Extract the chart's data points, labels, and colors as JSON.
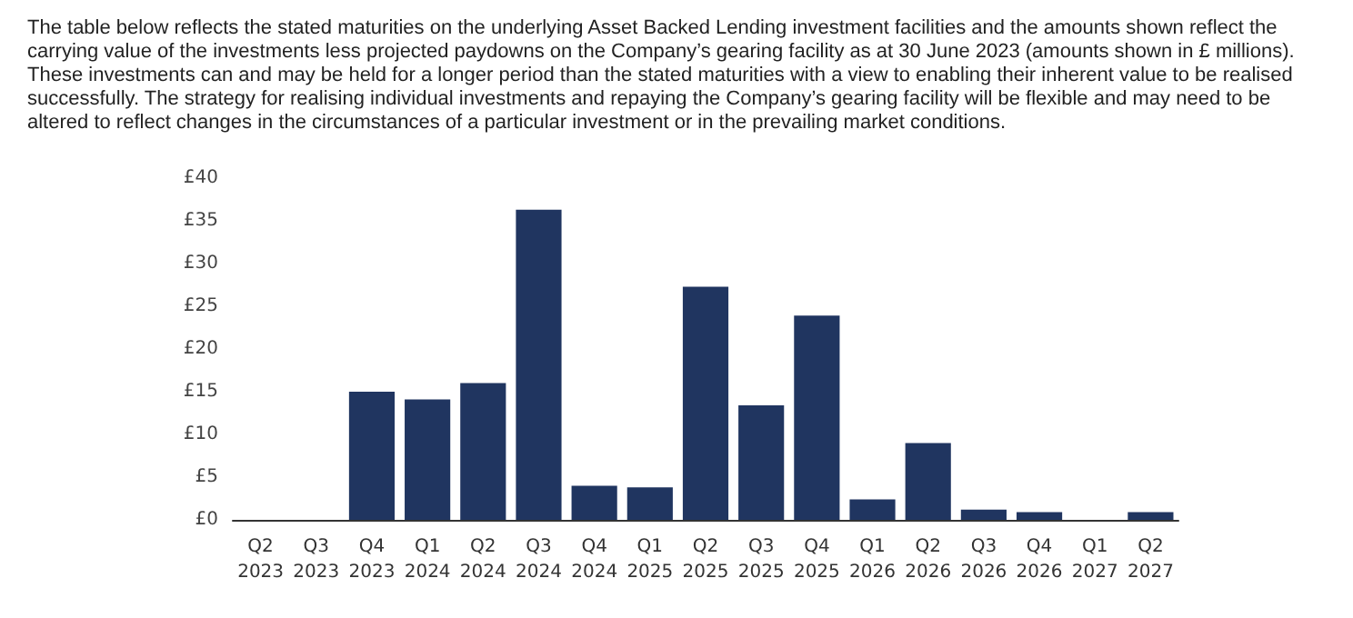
{
  "chart_data": {
    "type": "bar",
    "title": "The table below reflects the stated maturities on the underlying Asset Backed Lending investment facilities and the amounts shown reflect the carrying value of the investments less projected paydowns on the Company’s gearing facility as at 30 June 2023 (amounts shown in £ millions). These investments can and may be held for a longer period than the stated maturities with a view to enabling their inherent value to be realised successfully. The strategy for realising individual investments and repaying the Company’s gearing facility will be flexible and may need to be altered to reflect changes in the circumstances of a particular investment or in the prevailing market conditions.",
    "categories": [
      "Q2\n2023",
      "Q3\n2023",
      "Q4\n2023",
      "Q1\n2024",
      "Q2\n2024",
      "Q3\n2024",
      "Q4\n2024",
      "Q1\n2025",
      "Q2\n2025",
      "Q3\n2025",
      "Q4\n2025",
      "Q1\n2026",
      "Q2\n2026",
      "Q3\n2026",
      "Q4\n2026",
      "Q1\n2027",
      "Q2\n2027"
    ],
    "values": [
      0,
      0,
      15.0,
      14.1,
      16.0,
      36.3,
      4.0,
      3.8,
      27.3,
      13.4,
      23.9,
      2.4,
      9.0,
      1.2,
      0.9,
      0,
      0.9
    ],
    "color": "#203560",
    "ylim": [
      0,
      40
    ],
    "yticks": [
      {
        "value": 0,
        "label": "£0"
      },
      {
        "value": 5,
        "label": "£5"
      },
      {
        "value": 10,
        "label": "£10"
      },
      {
        "value": 15,
        "label": "£15"
      },
      {
        "value": 20,
        "label": "£20"
      },
      {
        "value": 25,
        "label": "£25"
      },
      {
        "value": 30,
        "label": "£30"
      },
      {
        "value": 35,
        "label": "£35"
      },
      {
        "value": 40,
        "label": "£40"
      }
    ],
    "grid": false
  }
}
